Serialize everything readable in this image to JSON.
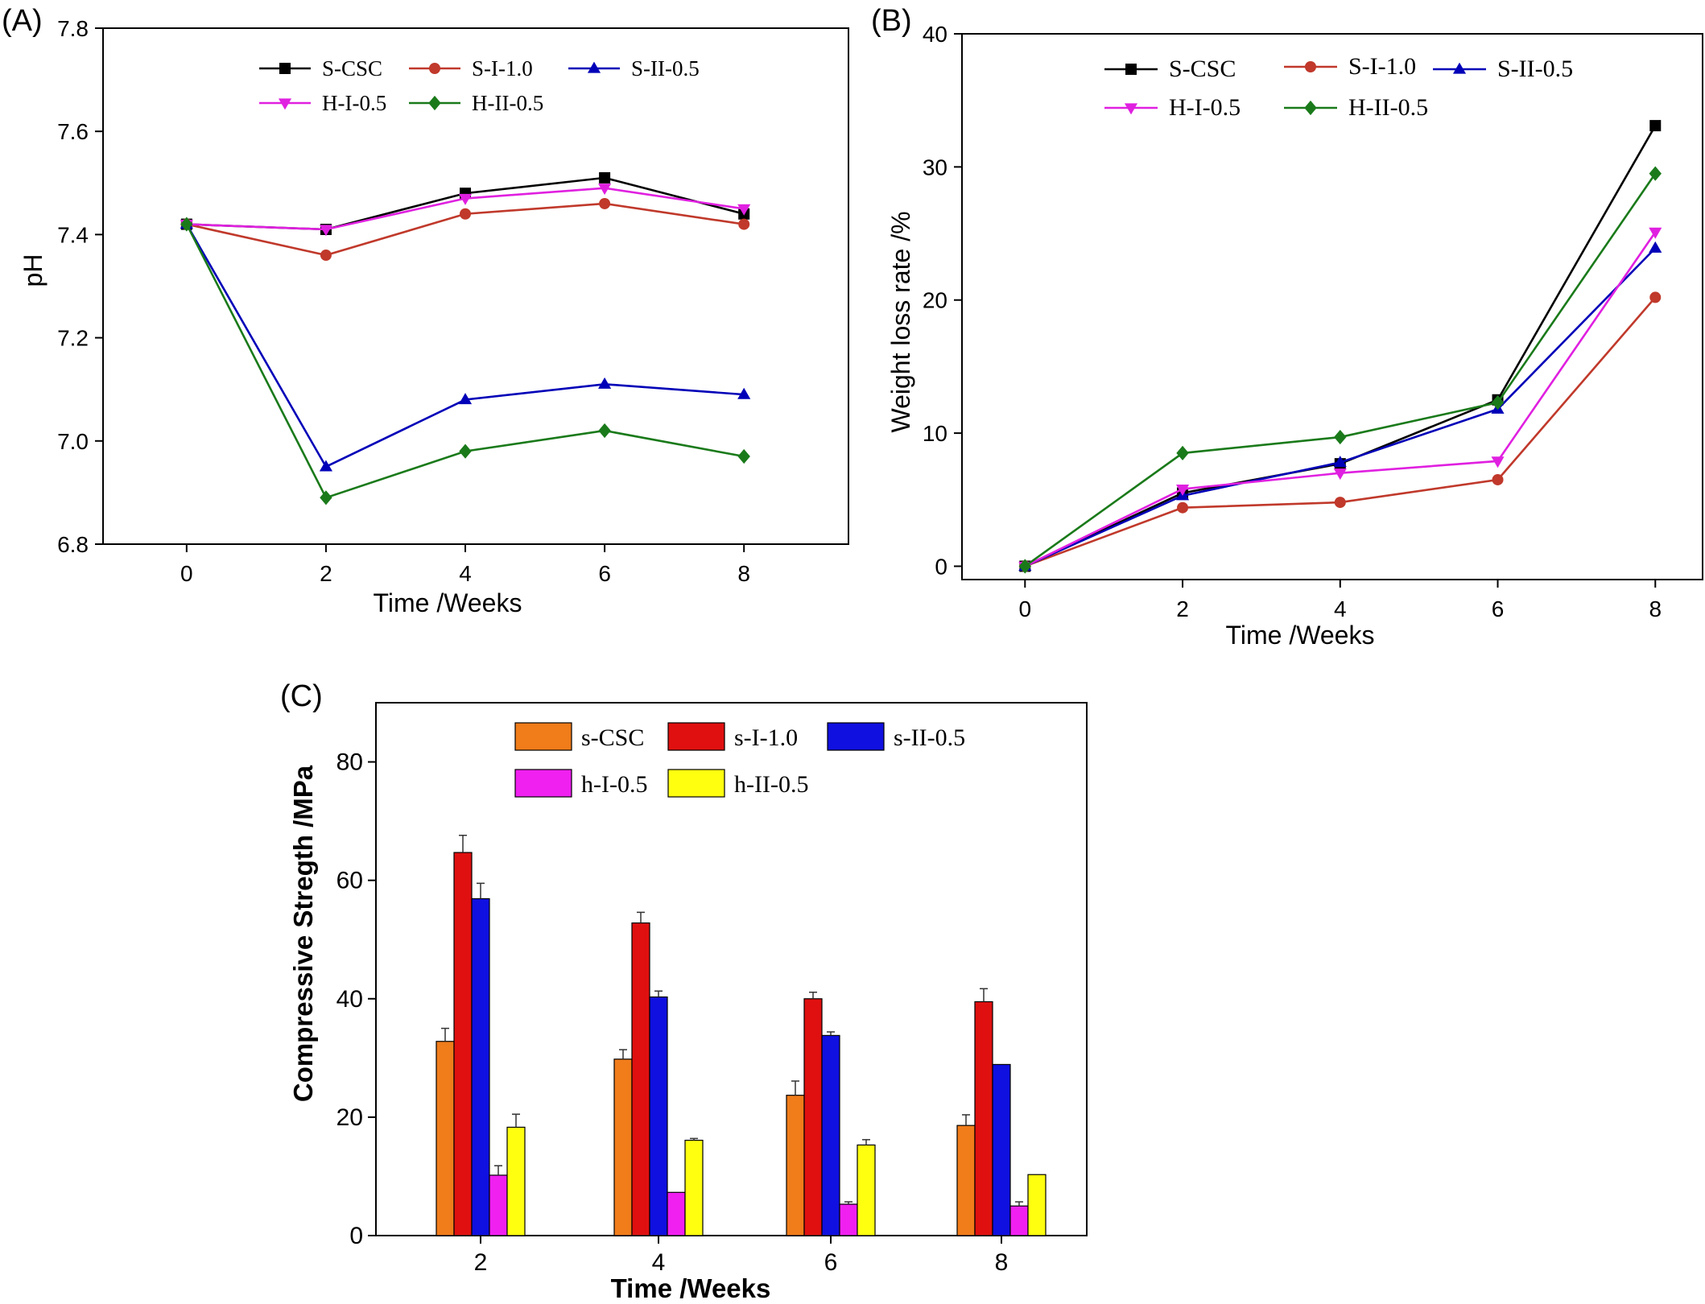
{
  "chart_data": [
    {
      "panel": "(A)",
      "type": "line",
      "xlabel": "Time /Weeks",
      "ylabel": "pH",
      "x": [
        0,
        2,
        4,
        6,
        8
      ],
      "xticks": [
        "0",
        "2",
        "4",
        "6",
        "8"
      ],
      "yticks": [
        "6.8",
        "7.0",
        "7.2",
        "7.4",
        "7.6",
        "7.8"
      ],
      "xlim": [
        -1.2,
        9.5
      ],
      "ylim": [
        6.8,
        7.8
      ],
      "legend_position": "top",
      "grid": false,
      "series": [
        {
          "name": "S-CSC",
          "color": "#000000",
          "marker": "square",
          "values": [
            7.42,
            7.41,
            7.48,
            7.51,
            7.44
          ]
        },
        {
          "name": "S-I-1.0",
          "color": "#c0392b",
          "marker": "circle",
          "values": [
            7.42,
            7.36,
            7.44,
            7.46,
            7.42
          ]
        },
        {
          "name": "S-II-0.5",
          "color": "#0000b8",
          "marker": "triangle-up",
          "values": [
            7.42,
            6.95,
            7.08,
            7.11,
            7.09
          ]
        },
        {
          "name": "H-I-0.5",
          "color": "#e020e0",
          "marker": "triangle-down",
          "values": [
            7.42,
            7.41,
            7.47,
            7.49,
            7.45
          ]
        },
        {
          "name": "H-II-0.5",
          "color": "#1a7a1a",
          "marker": "diamond",
          "values": [
            7.42,
            6.89,
            6.98,
            7.02,
            6.97
          ]
        }
      ]
    },
    {
      "panel": "(B)",
      "type": "line",
      "xlabel": "Time /Weeks",
      "ylabel": "Weight loss rate /%",
      "x": [
        0,
        2,
        4,
        6,
        8
      ],
      "xticks": [
        "0",
        "2",
        "4",
        "6",
        "8"
      ],
      "yticks": [
        "0",
        "10",
        "20",
        "30",
        "40"
      ],
      "xlim": [
        -0.8,
        8.6
      ],
      "ylim": [
        -1,
        40
      ],
      "legend_position": "top",
      "grid": false,
      "series": [
        {
          "name": "S-CSC",
          "color": "#000000",
          "marker": "square",
          "values": [
            0,
            5.5,
            7.7,
            12.5,
            33.1
          ]
        },
        {
          "name": "S-I-1.0",
          "color": "#c0392b",
          "marker": "circle",
          "values": [
            0,
            4.4,
            4.8,
            6.5,
            20.2
          ]
        },
        {
          "name": "S-II-0.5",
          "color": "#0000b8",
          "marker": "triangle-up",
          "values": [
            0,
            5.3,
            7.8,
            11.8,
            23.9
          ]
        },
        {
          "name": "H-I-0.5",
          "color": "#e020e0",
          "marker": "triangle-down",
          "values": [
            0,
            5.8,
            7.0,
            7.9,
            25.1
          ]
        },
        {
          "name": "H-II-0.5",
          "color": "#1a7a1a",
          "marker": "diamond",
          "values": [
            0,
            8.5,
            9.7,
            12.3,
            29.5
          ]
        }
      ]
    },
    {
      "panel": "(C)",
      "type": "bar",
      "xlabel": "Time /Weeks",
      "ylabel": "Compressive Stregth /MPa",
      "categories": [
        "2",
        "4",
        "6",
        "8"
      ],
      "yticks": [
        "0",
        "20",
        "40",
        "60",
        "80"
      ],
      "ylim": [
        0,
        90
      ],
      "legend_position": "top",
      "grid": false,
      "series": [
        {
          "name": "s-CSC",
          "color": "#f07c1a",
          "values": [
            32.8,
            29.8,
            23.7,
            18.6
          ],
          "errors": [
            2.2,
            1.6,
            2.4,
            1.8
          ]
        },
        {
          "name": "s-I-1.0",
          "color": "#e01010",
          "values": [
            64.7,
            52.8,
            40.0,
            39.5
          ],
          "errors": [
            2.9,
            1.8,
            1.1,
            2.2
          ]
        },
        {
          "name": "s-II-0.5",
          "color": "#1010e0",
          "values": [
            56.9,
            40.3,
            33.8,
            28.9
          ],
          "errors": [
            2.6,
            1.0,
            0.6,
            0.0
          ]
        },
        {
          "name": "h-I-0.5",
          "color": "#f020f0",
          "values": [
            10.2,
            7.3,
            5.3,
            5.0
          ],
          "errors": [
            1.6,
            0.0,
            0.4,
            0.7
          ]
        },
        {
          "name": "h-II-0.5",
          "color": "#ffff10",
          "values": [
            18.3,
            16.1,
            15.3,
            10.3
          ],
          "errors": [
            2.2,
            0.3,
            0.9,
            0.0
          ]
        }
      ]
    }
  ]
}
